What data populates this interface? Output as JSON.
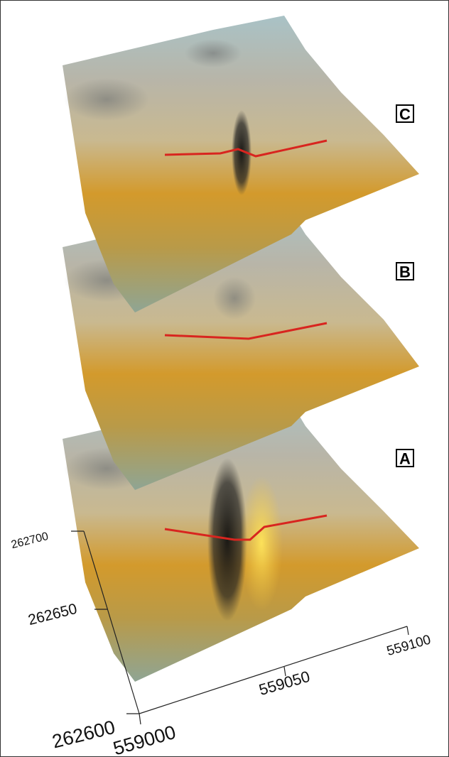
{
  "panels": [
    {
      "label": "C"
    },
    {
      "label": "B"
    },
    {
      "label": "A"
    }
  ],
  "y_axis": {
    "ticks": [
      262700,
      262650,
      262600
    ]
  },
  "x_axis": {
    "ticks": [
      559000,
      559050,
      559100
    ]
  }
}
